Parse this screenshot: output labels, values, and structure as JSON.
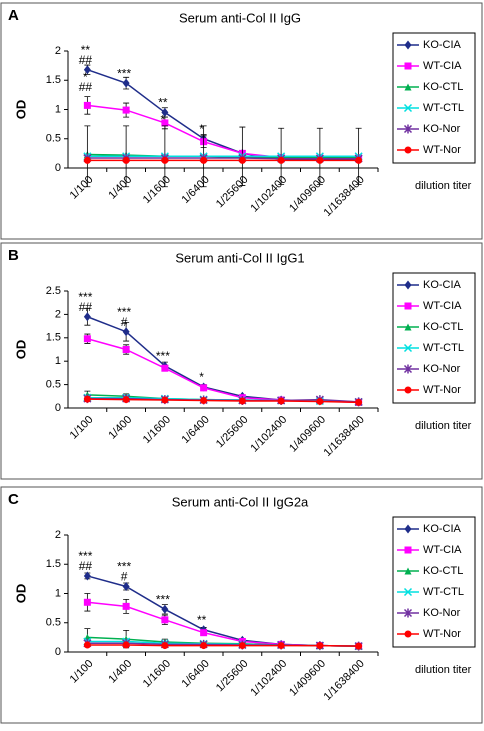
{
  "chart_data": [
    {
      "type": "line",
      "panel": "A",
      "title": "Serum anti-Col II IgG",
      "y_label": "OD",
      "x_label": "dilution titer",
      "legend": "right",
      "categories": [
        "1/100",
        "1/400",
        "1/1600",
        "1/6400",
        "1/25600",
        "1/102400",
        "1/409600",
        "1/1638400"
      ],
      "ylim": [
        0,
        2
      ],
      "yticks": [
        0,
        0.5,
        1,
        1.5,
        2
      ],
      "series": [
        {
          "name": "KO-CIA",
          "color": "#1f2d8a",
          "marker": "diamond",
          "values": [
            1.68,
            1.45,
            0.95,
            0.5,
            0.25,
            0.15,
            0.15,
            0.15
          ],
          "errors": [
            0.08,
            0.1,
            0.08,
            0.07,
            0.05,
            null,
            null,
            null
          ]
        },
        {
          "name": "WT-CIA",
          "color": "#ff00ff",
          "marker": "square",
          "values": [
            1.07,
            0.99,
            0.77,
            0.45,
            0.25,
            0.18,
            0.17,
            0.17
          ],
          "errors": [
            0.15,
            0.12,
            0.1,
            0.1,
            null,
            null,
            null,
            null
          ]
        },
        {
          "name": "KO-CTL",
          "color": "#00b050",
          "marker": "triangle",
          "values": [
            0.23,
            0.22,
            0.2,
            0.2,
            0.18,
            0.18,
            0.18,
            0.18
          ]
        },
        {
          "name": "WT-CTL",
          "color": "#00e0e0",
          "marker": "x",
          "values": [
            0.2,
            0.2,
            0.2,
            0.2,
            0.2,
            0.2,
            0.2,
            0.2
          ],
          "errors": [
            0.52,
            0.52,
            0.52,
            0.52,
            0.5,
            0.48,
            0.48,
            0.48
          ]
        },
        {
          "name": "KO-Nor",
          "color": "#7030a0",
          "marker": "star",
          "values": [
            0.17,
            0.17,
            0.17,
            0.17,
            0.17,
            0.16,
            0.16,
            0.16
          ]
        },
        {
          "name": "WT-Nor",
          "color": "#ff0000",
          "marker": "circle",
          "values": [
            0.13,
            0.13,
            0.13,
            0.13,
            0.13,
            0.13,
            0.13,
            0.13
          ]
        }
      ],
      "annotations": [
        {
          "category": "1/100",
          "text": [
            "**",
            "##"
          ]
        },
        {
          "category": "1/100",
          "text": [
            "*",
            "##"
          ],
          "below": true
        },
        {
          "category": "1/400",
          "text": [
            "***"
          ]
        },
        {
          "category": "1/1600",
          "text": [
            "**"
          ]
        },
        {
          "category": "1/1600",
          "text": [
            "*"
          ],
          "below": true
        },
        {
          "category": "1/6400",
          "text": [
            "*"
          ]
        }
      ]
    },
    {
      "type": "line",
      "panel": "B",
      "title": "Serum anti-Col II IgG1",
      "y_label": "OD",
      "x_label": "dilution titer",
      "legend": "right",
      "categories": [
        "1/100",
        "1/400",
        "1/1600",
        "1/6400",
        "1/25600",
        "1/102400",
        "1/409600",
        "1/1638400"
      ],
      "ylim": [
        0,
        2.5
      ],
      "yticks": [
        0,
        0.5,
        1,
        1.5,
        2,
        2.5
      ],
      "series": [
        {
          "name": "KO-CIA",
          "color": "#1f2d8a",
          "marker": "diamond",
          "values": [
            1.95,
            1.63,
            0.9,
            0.45,
            0.25,
            0.17,
            0.15,
            0.13
          ],
          "errors": [
            0.18,
            0.2,
            0.08,
            0.05,
            null,
            null,
            null,
            null
          ]
        },
        {
          "name": "WT-CIA",
          "color": "#ff00ff",
          "marker": "square",
          "values": [
            1.48,
            1.25,
            0.85,
            0.43,
            0.22,
            0.17,
            0.15,
            0.12
          ],
          "errors": [
            0.1,
            0.1,
            0.05,
            0.05,
            null,
            null,
            null,
            null
          ]
        },
        {
          "name": "KO-CTL",
          "color": "#00b050",
          "marker": "triangle",
          "values": [
            0.28,
            0.25,
            0.2,
            0.18,
            0.17,
            0.16,
            0.15,
            0.13
          ],
          "errors": [
            0.08,
            0.05,
            null,
            null,
            null,
            null,
            null,
            null
          ]
        },
        {
          "name": "WT-CTL",
          "color": "#00e0e0",
          "marker": "x",
          "values": [
            0.22,
            0.22,
            0.2,
            0.18,
            0.17,
            0.16,
            0.15,
            0.13
          ]
        },
        {
          "name": "KO-Nor",
          "color": "#7030a0",
          "marker": "star",
          "values": [
            0.2,
            0.2,
            0.18,
            0.17,
            0.16,
            0.16,
            0.18,
            0.13
          ]
        },
        {
          "name": "WT-Nor",
          "color": "#ff0000",
          "marker": "circle",
          "values": [
            0.19,
            0.18,
            0.17,
            0.16,
            0.15,
            0.15,
            0.14,
            0.12
          ]
        }
      ],
      "annotations": [
        {
          "category": "1/100",
          "text": [
            "***",
            "##"
          ]
        },
        {
          "category": "1/400",
          "text": [
            "***",
            "#"
          ]
        },
        {
          "category": "1/1600",
          "text": [
            "***"
          ]
        },
        {
          "category": "1/6400",
          "text": [
            "*"
          ]
        }
      ]
    },
    {
      "type": "line",
      "panel": "C",
      "title": "Serum anti-Col II IgG2a",
      "y_label": "OD",
      "x_label": "dilution titer",
      "legend": "right",
      "categories": [
        "1/100",
        "1/400",
        "1/1600",
        "1/6400",
        "1/25600",
        "1/102400",
        "1/409600",
        "1/1638400"
      ],
      "ylim": [
        0,
        2
      ],
      "yticks": [
        0,
        0.5,
        1,
        1.5,
        2
      ],
      "series": [
        {
          "name": "KO-CIA",
          "color": "#1f2d8a",
          "marker": "diamond",
          "values": [
            1.3,
            1.12,
            0.73,
            0.38,
            0.2,
            0.13,
            0.11,
            0.1
          ],
          "errors": [
            0.05,
            0.06,
            0.08,
            0.04,
            null,
            null,
            null,
            null
          ]
        },
        {
          "name": "WT-CIA",
          "color": "#ff00ff",
          "marker": "square",
          "values": [
            0.85,
            0.78,
            0.55,
            0.33,
            0.18,
            0.13,
            0.11,
            0.1
          ],
          "errors": [
            0.15,
            0.12,
            0.08,
            0.05,
            null,
            null,
            null,
            null
          ]
        },
        {
          "name": "KO-CTL",
          "color": "#00b050",
          "marker": "triangle",
          "values": [
            0.25,
            0.22,
            0.17,
            0.15,
            0.14,
            0.12,
            0.11,
            0.1
          ],
          "errors": [
            0.15,
            0.15,
            0.05,
            null,
            null,
            null,
            null,
            null
          ]
        },
        {
          "name": "WT-CTL",
          "color": "#00e0e0",
          "marker": "x",
          "values": [
            0.18,
            0.18,
            0.15,
            0.14,
            0.13,
            0.12,
            0.11,
            0.1
          ]
        },
        {
          "name": "KO-Nor",
          "color": "#7030a0",
          "marker": "star",
          "values": [
            0.15,
            0.15,
            0.13,
            0.13,
            0.12,
            0.12,
            0.11,
            0.1
          ]
        },
        {
          "name": "WT-Nor",
          "color": "#ff0000",
          "marker": "circle",
          "values": [
            0.12,
            0.12,
            0.11,
            0.11,
            0.11,
            0.11,
            0.11,
            0.1
          ]
        }
      ],
      "annotations": [
        {
          "category": "1/100",
          "text": [
            "***",
            "##"
          ]
        },
        {
          "category": "1/400",
          "text": [
            "***",
            "#"
          ]
        },
        {
          "category": "1/1600",
          "text": [
            "***"
          ]
        },
        {
          "category": "1/6400",
          "text": [
            "**"
          ]
        }
      ]
    }
  ]
}
